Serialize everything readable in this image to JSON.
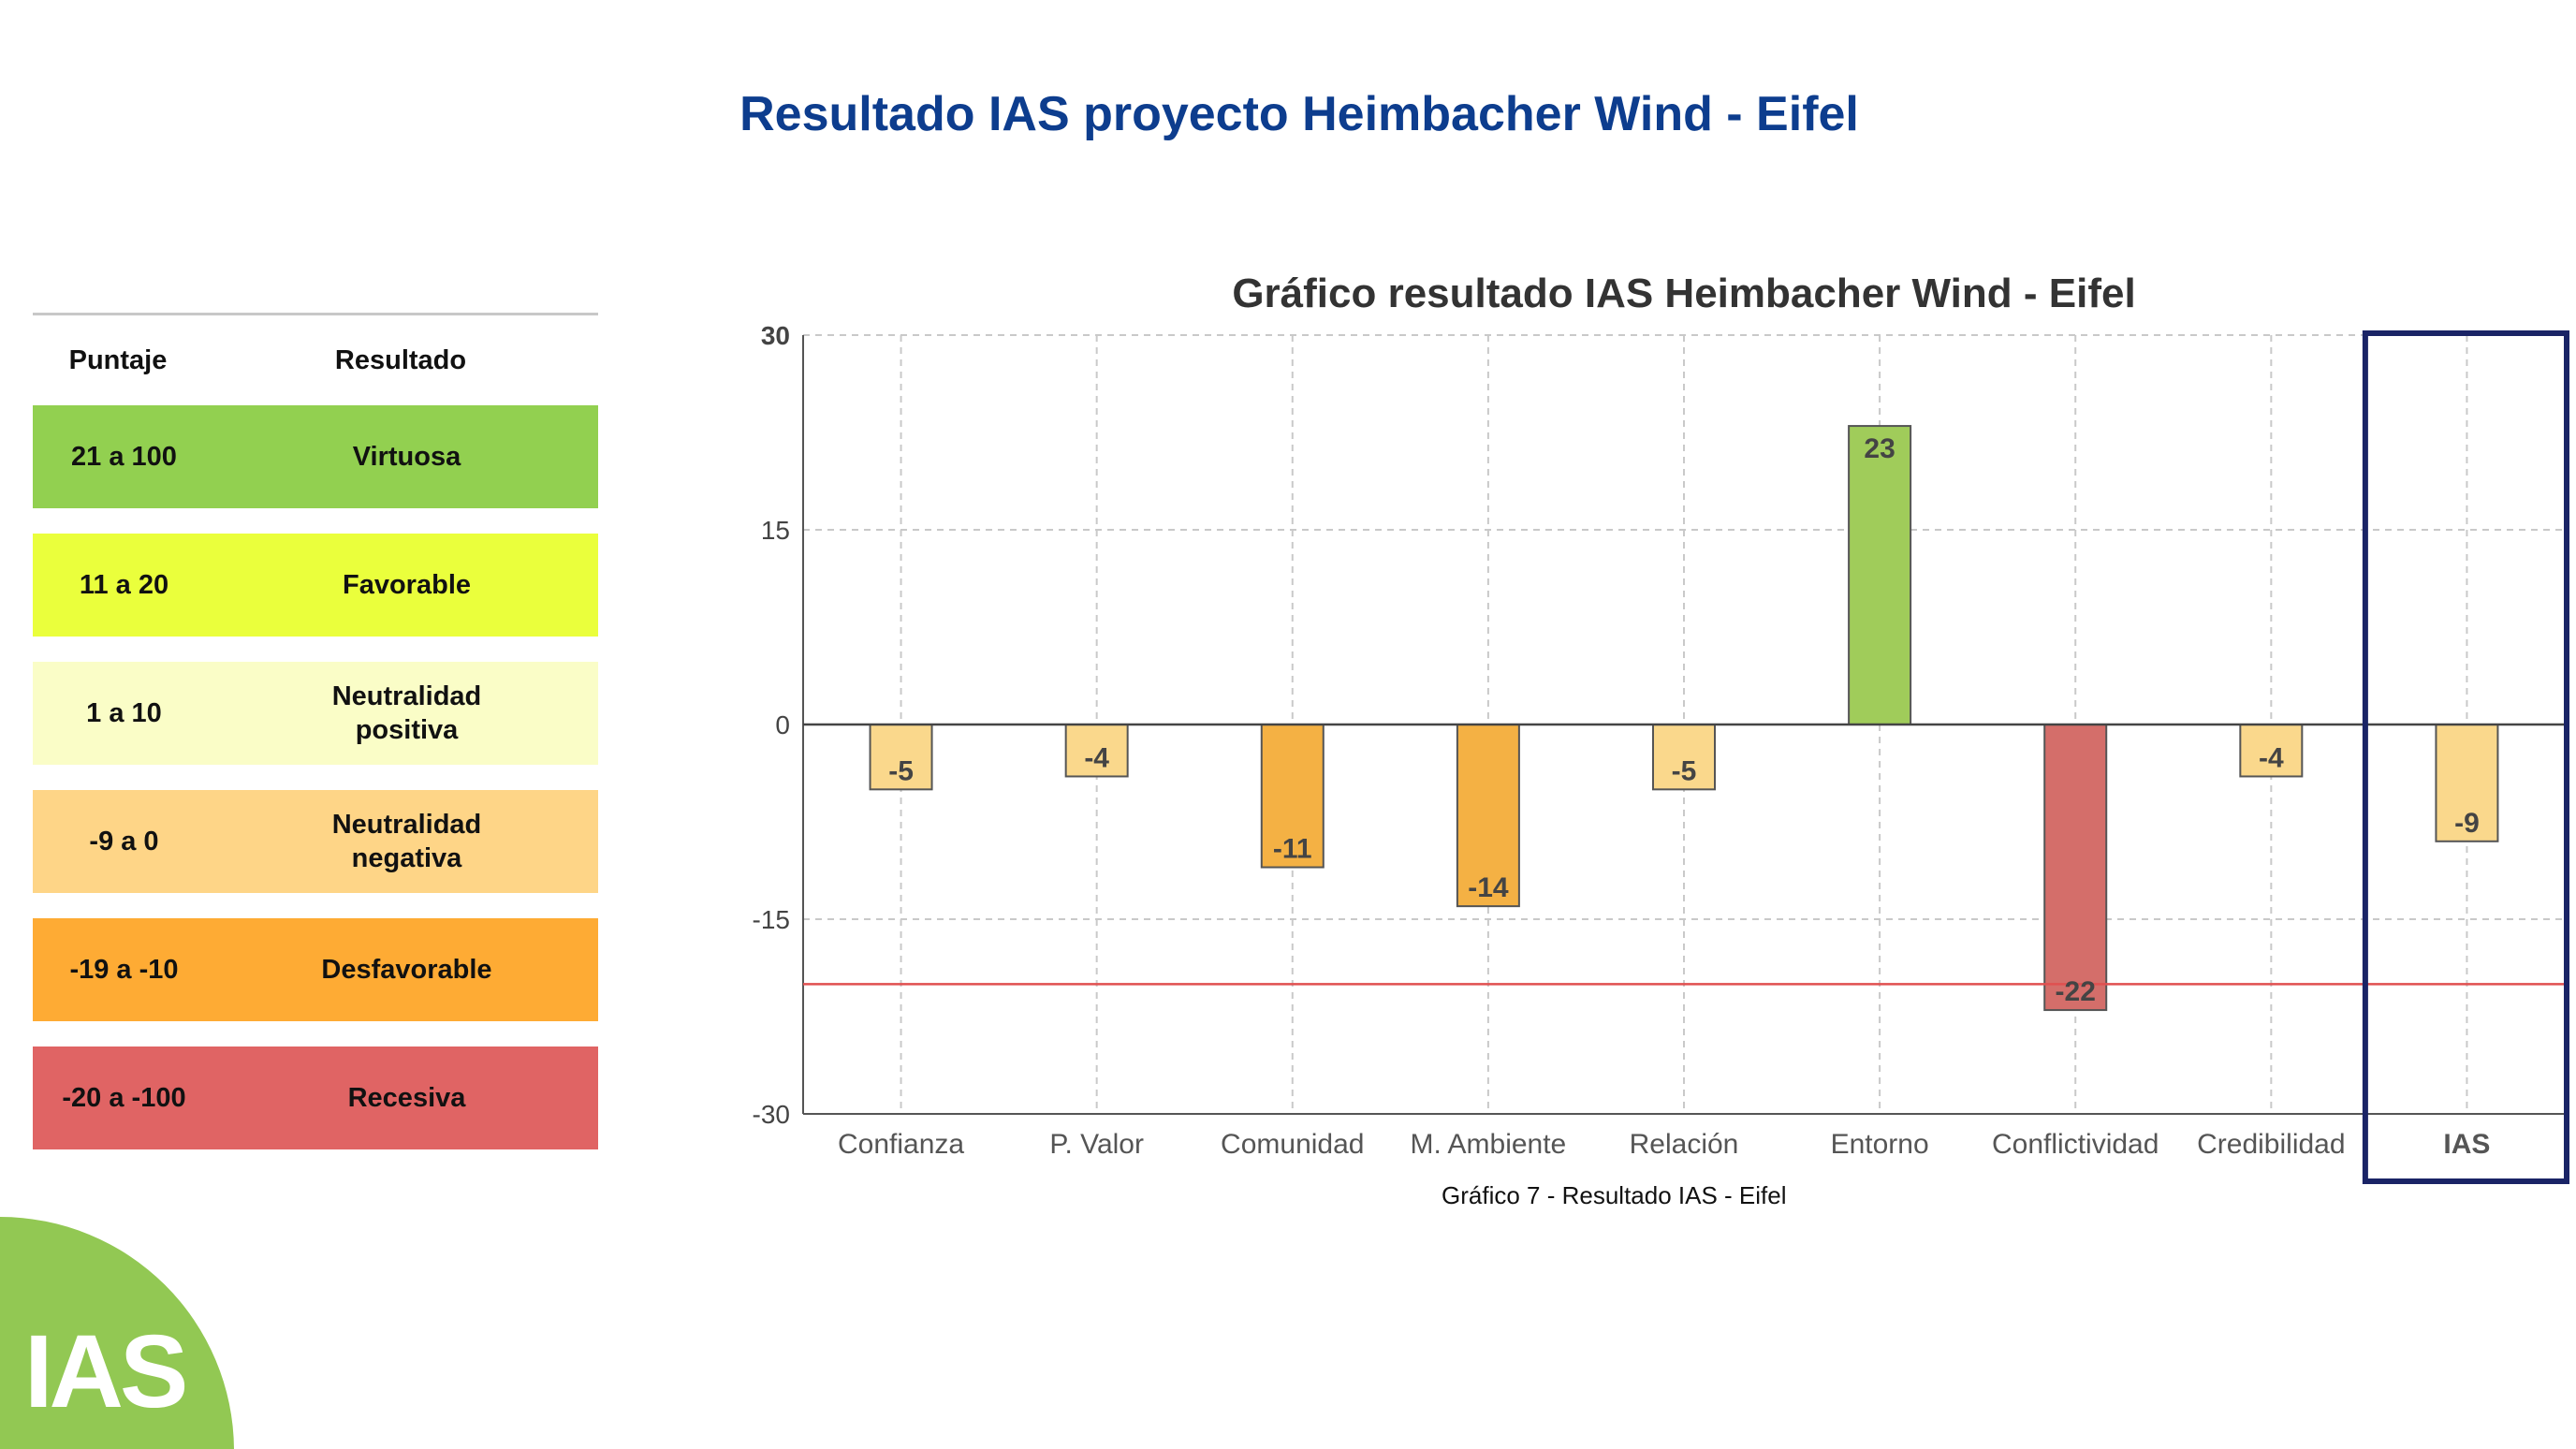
{
  "page": {
    "title": "Resultado IAS proyecto Heimbacher Wind - Eifel",
    "caption": "Gráfico 7 - Resultado IAS - Eifel",
    "logo_text": "IAS"
  },
  "legend": {
    "header_score": "Puntaje",
    "header_result": "Resultado",
    "rows": [
      {
        "score": "21 a 100",
        "result": "Virtuosa",
        "color": "#92d050"
      },
      {
        "score": "11 a 20",
        "result": "Favorable",
        "color": "#eaff3c"
      },
      {
        "score": "1 a 10",
        "result": "Neutralidad\npositiva",
        "color": "#fafdc7"
      },
      {
        "score": "-9 a 0",
        "result": "Neutralidad\nnegativa",
        "color": "#fed587"
      },
      {
        "score": "-19 a -10",
        "result": "Desfavorable",
        "color": "#feab34"
      },
      {
        "score": "-20 a -100",
        "result": "Recesiva",
        "color": "#e06464"
      }
    ]
  },
  "chart_data": {
    "type": "bar",
    "title": "Gráfico resultado IAS Heimbacher Wind - Eifel",
    "categories": [
      "Confianza",
      "P. Valor",
      "Comunidad",
      "M. Ambiente",
      "Relación",
      "Entorno",
      "Conflictividad",
      "Credibilidad",
      "IAS"
    ],
    "values": [
      -5,
      -4,
      -11,
      -14,
      -5,
      23,
      -22,
      -4,
      -9
    ],
    "colors": [
      "#fad88c",
      "#fad88c",
      "#f4b144",
      "#f4b144",
      "#fad88c",
      "#a0cc5a",
      "#d46e6a",
      "#fad88c",
      "#fad88c"
    ],
    "ylim": [
      -30,
      30
    ],
    "yticks": [
      -30,
      -15,
      0,
      15,
      30
    ],
    "grid": true,
    "reference_line": -20,
    "reference_line_color": "#e05050",
    "highlight_category": "IAS",
    "highlight_color": "#1a2466"
  }
}
